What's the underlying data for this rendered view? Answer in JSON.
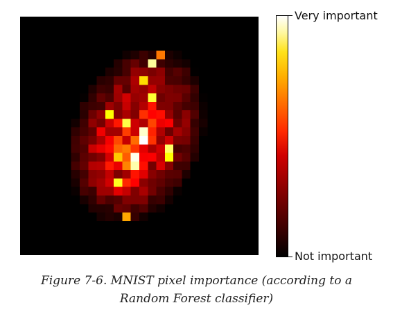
{
  "chart_data": {
    "type": "heatmap",
    "grid_size": [
      28,
      28
    ],
    "colormap": "hot",
    "colorbar": {
      "high_label": "Very important",
      "low_label": "Not important"
    },
    "hotspots": [
      {
        "row": 14,
        "col": 14,
        "value": 1.0
      },
      {
        "row": 16,
        "col": 13,
        "value": 0.98
      },
      {
        "row": 13,
        "col": 14,
        "value": 0.95
      },
      {
        "row": 17,
        "col": 13,
        "value": 0.92
      },
      {
        "row": 5,
        "col": 15,
        "value": 0.9
      },
      {
        "row": 12,
        "col": 12,
        "value": 0.82
      },
      {
        "row": 15,
        "col": 17,
        "value": 0.85
      },
      {
        "row": 9,
        "col": 15,
        "value": 0.8
      },
      {
        "row": 19,
        "col": 11,
        "value": 0.78
      },
      {
        "row": 11,
        "col": 10,
        "value": 0.75
      },
      {
        "row": 16,
        "col": 17,
        "value": 0.75
      },
      {
        "row": 7,
        "col": 14,
        "value": 0.7
      },
      {
        "row": 4,
        "col": 16,
        "value": 0.55
      },
      {
        "row": 23,
        "col": 12,
        "value": 0.62
      }
    ]
  },
  "caption": {
    "line1": "Figure 7-6. MNIST pixel importance (according to a",
    "line2": "Random Forest classifier)"
  }
}
